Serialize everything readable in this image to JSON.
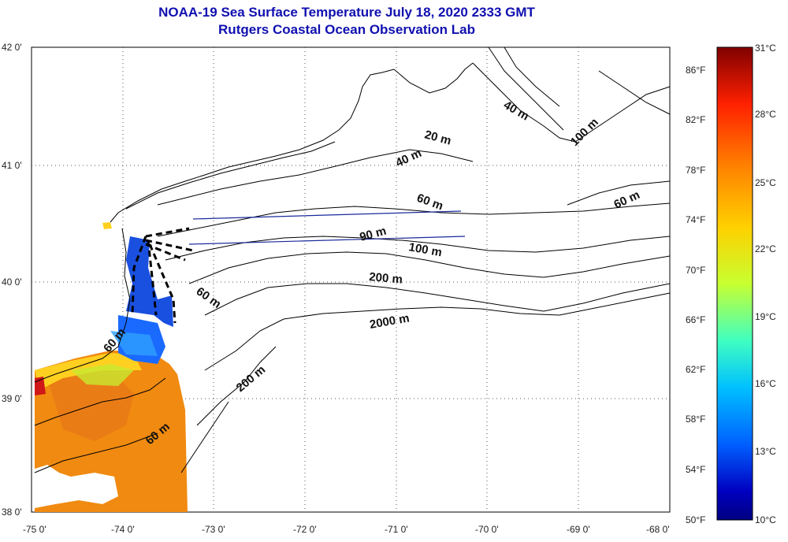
{
  "header": {
    "title": "NOAA-19 Sea Surface Temperature July 18, 2020 2333 GMT",
    "subtitle": "Rutgers Coastal Ocean Observation Lab"
  },
  "map": {
    "lon_ticks": [
      "-75 0'",
      "-74 0'",
      "-73 0'",
      "-72 0'",
      "-71 0'",
      "-70 0'",
      "-69 0'",
      "-68 0'"
    ],
    "lat_ticks": [
      "42 0'",
      "41 0'",
      "40 0'",
      "39 0'",
      "38 0'"
    ],
    "contour_labels": [
      "40 m",
      "20 m",
      "40 m",
      "100 m",
      "60 m",
      "60 m",
      "90 m",
      "100 m",
      "200 m",
      "60 m",
      "2000 m",
      "200 m",
      "60 m",
      "60 m"
    ],
    "colors": {
      "land_outline": "#000000",
      "transect": "#1a2a9a",
      "grid": "#444444"
    }
  },
  "colorbar": {
    "fahrenheit": [
      "86°F",
      "82°F",
      "78°F",
      "74°F",
      "70°F",
      "66°F",
      "62°F",
      "58°F",
      "54°F",
      "50°F"
    ],
    "celsius": [
      "31°C",
      "28°C",
      "25°C",
      "22°C",
      "19°C",
      "16°C",
      "13°C",
      "10°C"
    ],
    "gradient": [
      "#800000",
      "#ff2000",
      "#ff8000",
      "#ffd000",
      "#c8ff30",
      "#40ffc0",
      "#00c0ff",
      "#0060ff",
      "#0000c0",
      "#000080"
    ]
  }
}
